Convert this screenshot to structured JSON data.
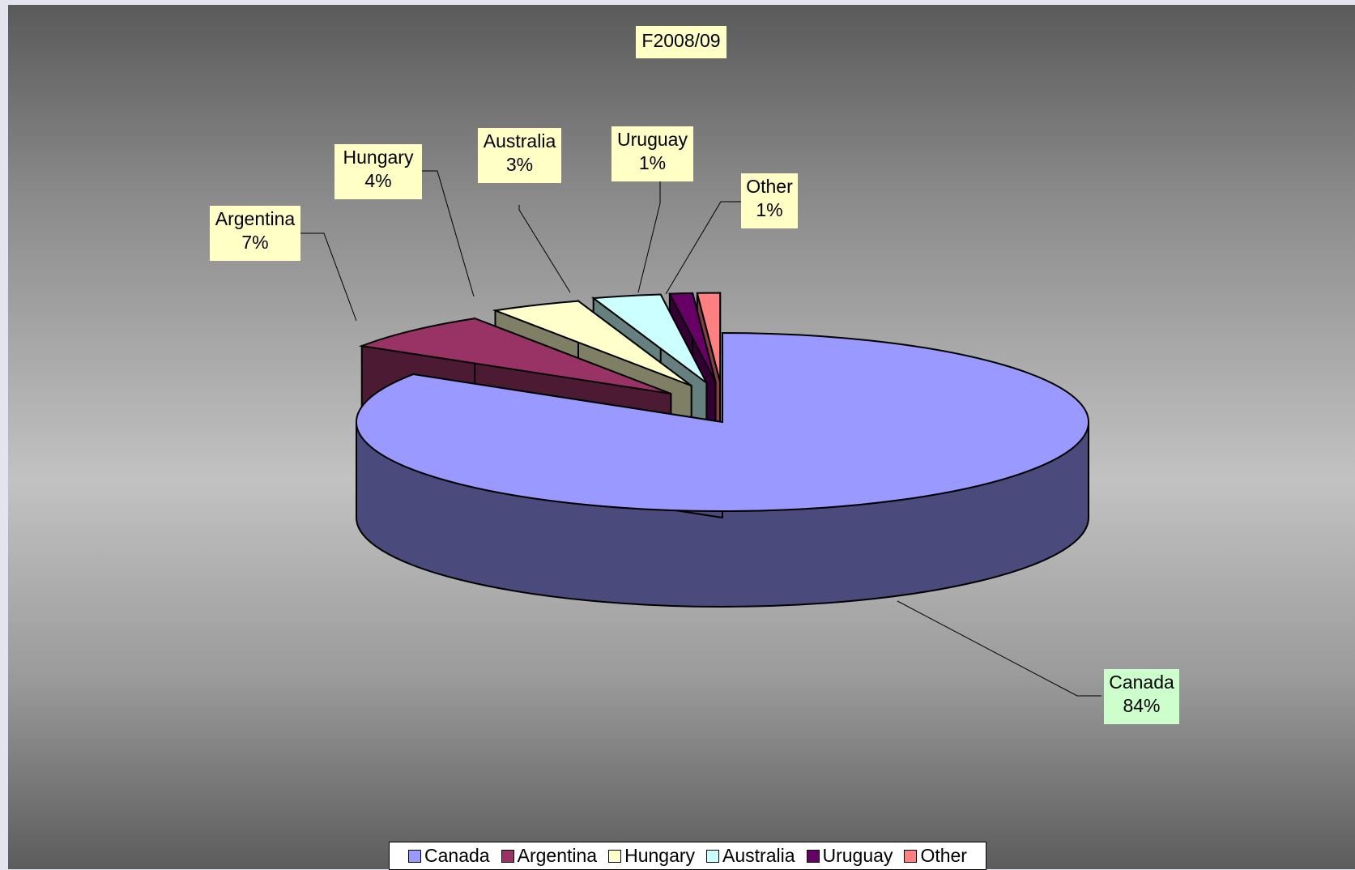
{
  "chart_data": {
    "type": "pie",
    "title": "F2008/09",
    "three_d": true,
    "exploded": true,
    "categories": [
      "Canada",
      "Argentina",
      "Hungary",
      "Australia",
      "Uruguay",
      "Other"
    ],
    "values": [
      84,
      7,
      4,
      3,
      1,
      1
    ],
    "labels": [
      {
        "name": "Canada",
        "value": "84%"
      },
      {
        "name": "Argentina",
        "value": "7%"
      },
      {
        "name": "Hungary",
        "value": "4%"
      },
      {
        "name": "Australia",
        "value": "3%"
      },
      {
        "name": "Uruguay",
        "value": "1%"
      },
      {
        "name": "Other",
        "value": "1%"
      }
    ],
    "colors": {
      "Canada": {
        "top": "#9999ff",
        "side": "#4a4a7c"
      },
      "Argentina": {
        "top": "#993366",
        "side": "#4d1a33"
      },
      "Hungary": {
        "top": "#ffffcc",
        "side": "#7f7f66"
      },
      "Australia": {
        "top": "#ccffff",
        "side": "#668080"
      },
      "Uruguay": {
        "top": "#660066",
        "side": "#330033"
      },
      "Other": {
        "top": "#ff8080",
        "side": "#804040"
      }
    },
    "legend": {
      "position": "bottom",
      "entries": [
        "Canada",
        "Argentina",
        "Hungary",
        "Australia",
        "Uruguay",
        "Other"
      ]
    },
    "grid": false
  }
}
